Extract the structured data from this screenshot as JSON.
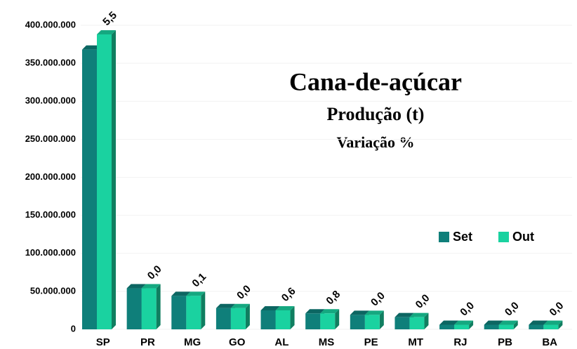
{
  "chart_data": {
    "type": "bar",
    "title": "Cana-de-açúcar",
    "subtitle": "Produção (t)",
    "annotation_title": "Variação %",
    "categories": [
      "SP",
      "PR",
      "MG",
      "GO",
      "AL",
      "MS",
      "PE",
      "MT",
      "RJ",
      "PB",
      "BA"
    ],
    "series": [
      {
        "name": "Set",
        "color": "#0f7f7a",
        "values": [
          368000000,
          54000000,
          44000000,
          28000000,
          25000000,
          21000000,
          19000000,
          16000000,
          6000000,
          6000000,
          6000000
        ]
      },
      {
        "name": "Out",
        "color": "#1ad2a0",
        "values": [
          388000000,
          54000000,
          44000000,
          28000000,
          25000000,
          21000000,
          19000000,
          16000000,
          6000000,
          6000000,
          6000000
        ]
      }
    ],
    "annotations": [
      "5,5",
      "0,0",
      "0,1",
      "0,0",
      "0,6",
      "0,8",
      "0,0",
      "0,0",
      "0,0",
      "0,0",
      "0,0"
    ],
    "ylim": [
      0,
      400000000
    ],
    "yticks": [
      0,
      {
        "value": 50000000,
        "label": "50.000.000"
      },
      {
        "value": 100000000,
        "label": "100.000.000"
      },
      {
        "value": 150000000,
        "label": "150.000.000"
      },
      {
        "value": 200000000,
        "label": "200.000.000"
      },
      {
        "value": 250000000,
        "label": "250.000.000"
      },
      {
        "value": 300000000,
        "label": "300.000.000"
      },
      {
        "value": 350000000,
        "label": "350.000.000"
      },
      {
        "value": 400000000,
        "label": "400.000.000"
      }
    ],
    "grid": true,
    "legend": "right"
  }
}
